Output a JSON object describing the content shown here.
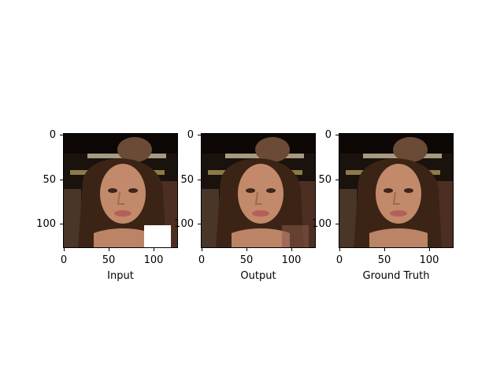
{
  "panels": [
    {
      "name": "input",
      "xlabel": "Input",
      "has_occlusion": true,
      "blend_lower_right": false
    },
    {
      "name": "output",
      "xlabel": "Output",
      "has_occlusion": false,
      "blend_lower_right": true
    },
    {
      "name": "ground-truth",
      "xlabel": "Ground Truth",
      "has_occlusion": false,
      "blend_lower_right": false
    }
  ],
  "axis": {
    "x_ticks": [
      "0",
      "50",
      "100"
    ],
    "y_ticks": [
      "0",
      "50",
      "100"
    ],
    "x_tick_values": [
      0,
      50,
      100
    ],
    "y_tick_values": [
      0,
      50,
      100
    ],
    "range": [
      0,
      128
    ]
  },
  "colors": {
    "background": "#1a120c",
    "hair": "#3b2416",
    "skin": "#c28a6a",
    "lips": "#b4605a",
    "occlusion": "#ffffff"
  }
}
